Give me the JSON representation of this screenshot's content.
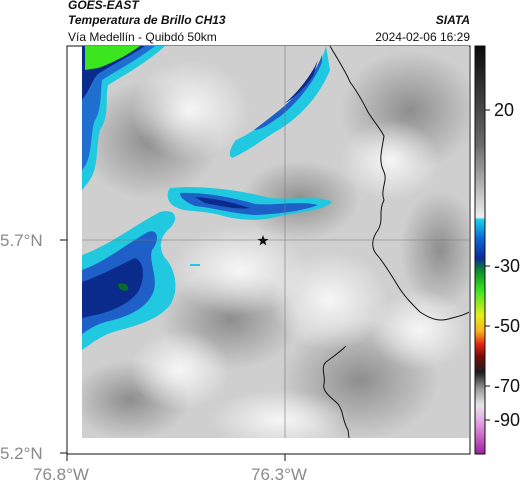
{
  "header": {
    "satellite": "GOES-EAST",
    "product": "Temperatura de Brillo CH13",
    "region": "Vía Medellín - Quibdó 50km",
    "agency": "SIATA",
    "datetime": "2024-02-06 16:29"
  },
  "axes": {
    "lat_labels": [
      "5.7°N",
      "5.2°N"
    ],
    "lon_labels": [
      "76.8°W",
      "76.3°W"
    ]
  },
  "colorbar": {
    "ticks": [
      "20",
      "-30",
      "-50",
      "-70",
      "-90"
    ],
    "units_values": [
      20,
      -30,
      -50,
      -70,
      -90
    ]
  },
  "map": {
    "marker": "star-icon",
    "colors": {
      "warm_gray_light": "#e6e6e6",
      "warm_gray_dark": "#9c9c9c",
      "cloud_cyan": "#20c8e0",
      "cloud_blue": "#1e5fc8",
      "cloud_navy": "#0a2a8c",
      "cloud_green": "#3ce61e",
      "border_line": "#111111"
    }
  }
}
